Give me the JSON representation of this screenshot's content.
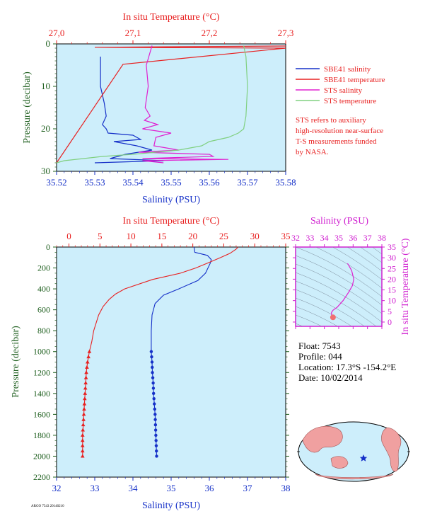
{
  "colors": {
    "plot_bg": "#cdeefb",
    "salinity": "#1530c8",
    "temperature": "#e82020",
    "sts_salinity": "#e020d0",
    "sts_temperature": "#80d080",
    "pressure_axis": "#206020",
    "ts_axis": "#d020d0",
    "land": "#f0a0a0",
    "sea": "#cdeefb"
  },
  "top_panel": {
    "top_axis_title": "In situ Temperature (°C)",
    "bottom_axis_title": "Salinity (PSU)",
    "left_axis_title": "Pressure (decibar)",
    "legend": [
      {
        "label": "SBE41 salinity",
        "color_key": "salinity"
      },
      {
        "label": "SBE41 temperature",
        "color_key": "temperature"
      },
      {
        "label": "STS salinity",
        "color_key": "sts_salinity"
      },
      {
        "label": "STS temperature",
        "color_key": "sts_temperature"
      }
    ],
    "note": [
      "STS refers to auxiliary",
      "high-resolution near-surface",
      "T-S measurements funded",
      "by NASA."
    ]
  },
  "bottom_panel": {
    "top_axis_title": "In situ Temperature (°C)",
    "bottom_axis_title": "Salinity (PSU)",
    "left_axis_title": "Pressure (decibar)"
  },
  "ts_panel": {
    "top_axis_title": "Salinity (PSU)",
    "right_axis_title": "In situ Temperature (°C)"
  },
  "info": {
    "float": "Float:  7543",
    "profile": "Profile:  044",
    "location": "Location:  17.3°S  -154.2°E",
    "date": "Date:  10/02/2014"
  },
  "footer_id": "ARGO 7543 20140210",
  "chart_data": [
    {
      "id": "top",
      "type": "line",
      "xlim": [
        35.52,
        35.58
      ],
      "xticks": [
        "35.52",
        "35.53",
        "35.54",
        "35.55",
        "35.56",
        "35.57",
        "35.58"
      ],
      "x2lim": [
        27.0,
        27.3
      ],
      "x2ticks": [
        "27,0",
        "27,1",
        "27,2",
        "27,3"
      ],
      "ylim": [
        0,
        30
      ],
      "yticks": [
        "0",
        "10",
        "20",
        "30"
      ],
      "series": [
        {
          "name": "SBE41 salinity",
          "axis": "x",
          "color_key": "salinity",
          "x": [
            35.5315,
            35.5315,
            35.5325,
            35.533,
            35.532,
            35.533,
            35.5335,
            35.54,
            35.542,
            35.535,
            35.541,
            35.545,
            35.538,
            35.534,
            35.548,
            35.53
          ],
          "y": [
            3,
            10,
            14,
            17,
            19,
            20,
            21,
            21.5,
            22.5,
            23,
            24,
            25,
            26,
            27,
            27.5,
            28
          ]
        },
        {
          "name": "SBE41 temperature",
          "axis": "x2",
          "color_key": "temperature",
          "x": [
            27.3,
            27.05,
            27.3,
            27.087,
            27.0
          ],
          "y": [
            0.5,
            0.8,
            1.0,
            4.8,
            28
          ]
        },
        {
          "name": "STS salinity",
          "axis": "x",
          "color_key": "sts_salinity",
          "x": [
            35.545,
            35.5435,
            35.544,
            35.5432,
            35.5445,
            35.543,
            35.5465,
            35.5425,
            35.55,
            35.546,
            35.5455,
            35.552,
            35.5415,
            35.56,
            35.561,
            35.5425,
            35.565,
            35.5425,
            35.548
          ],
          "y": [
            0.4,
            5,
            10,
            15,
            17,
            18,
            19,
            20,
            21,
            22,
            24,
            25,
            25.5,
            26,
            26.5,
            27,
            27.2,
            27.5,
            28
          ]
        },
        {
          "name": "STS temperature",
          "axis": "x2",
          "color_key": "sts_temperature",
          "x": [
            27.245,
            27.248,
            27.25,
            27.248,
            27.245,
            27.238,
            27.225,
            27.2,
            27.19,
            27.175,
            27.16,
            27.1,
            27.06,
            27.01,
            27.0
          ],
          "y": [
            0.4,
            3,
            10,
            17,
            20,
            21,
            22,
            23,
            24,
            24.5,
            25,
            26,
            26.5,
            27.5,
            28
          ]
        }
      ]
    },
    {
      "id": "profile",
      "type": "line",
      "xlim": [
        32,
        38
      ],
      "xticks": [
        "32",
        "33",
        "34",
        "35",
        "36",
        "37",
        "38"
      ],
      "x2lim": [
        -2,
        35
      ],
      "x2ticks": [
        "0",
        "5",
        "10",
        "15",
        "20",
        "25",
        "30",
        "35"
      ],
      "ylim": [
        0,
        2200
      ],
      "yticks": [
        "0",
        "200",
        "400",
        "600",
        "800",
        "1000",
        "1200",
        "1400",
        "1600",
        "1800",
        "2000",
        "2200"
      ],
      "series": [
        {
          "name": "Salinity",
          "axis": "x",
          "color_key": "salinity",
          "marker": "circle",
          "x": [
            35.6,
            35.62,
            35.95,
            36.05,
            36.03,
            35.9,
            35.7,
            35.2,
            34.8,
            34.58,
            34.5,
            34.48,
            34.48,
            34.5,
            34.51,
            34.53,
            34.54,
            34.56,
            34.58,
            34.6,
            34.62
          ],
          "y": [
            0,
            50,
            80,
            120,
            150,
            250,
            320,
            400,
            460,
            540,
            650,
            800,
            1000,
            1100,
            1200,
            1300,
            1400,
            1500,
            1600,
            1800,
            2000
          ],
          "marker_from": 1000
        },
        {
          "name": "Temperature",
          "axis": "x2",
          "color_key": "temperature",
          "marker": "triangle",
          "x": [
            27.3,
            27.0,
            26.0,
            24.5,
            22.5,
            20.5,
            18.0,
            13.5,
            9.0,
            7.5,
            6.5,
            5.5,
            4.8,
            4.0,
            3.7,
            3.3,
            3.0,
            2.8,
            2.7,
            2.6,
            2.5,
            2.4,
            2.3,
            2.2,
            2.2
          ],
          "y": [
            0,
            20,
            60,
            100,
            150,
            200,
            250,
            310,
            400,
            450,
            500,
            570,
            650,
            800,
            900,
            1000,
            1100,
            1200,
            1300,
            1400,
            1500,
            1600,
            1700,
            1800,
            2000
          ],
          "marker_from": 1000
        }
      ]
    },
    {
      "id": "ts",
      "type": "line",
      "xlim": [
        32,
        38
      ],
      "xticks": [
        "32",
        "33",
        "34",
        "35",
        "36",
        "37",
        "38"
      ],
      "ylim": [
        -2,
        35
      ],
      "yticks": [
        "0",
        "5",
        "10",
        "15",
        "20",
        "25",
        "30",
        "35"
      ],
      "series": [
        {
          "name": "T-S",
          "color_key": "sts_salinity",
          "x": [
            35.6,
            35.65,
            35.9,
            36.05,
            35.95,
            35.7,
            35.3,
            34.9,
            34.6,
            34.5,
            34.5,
            34.55,
            34.6
          ],
          "y": [
            27.3,
            27.0,
            24.0,
            20.0,
            17.0,
            14.0,
            10.0,
            7.0,
            5.5,
            4.5,
            3.5,
            2.7,
            2.2
          ]
        }
      ]
    }
  ]
}
